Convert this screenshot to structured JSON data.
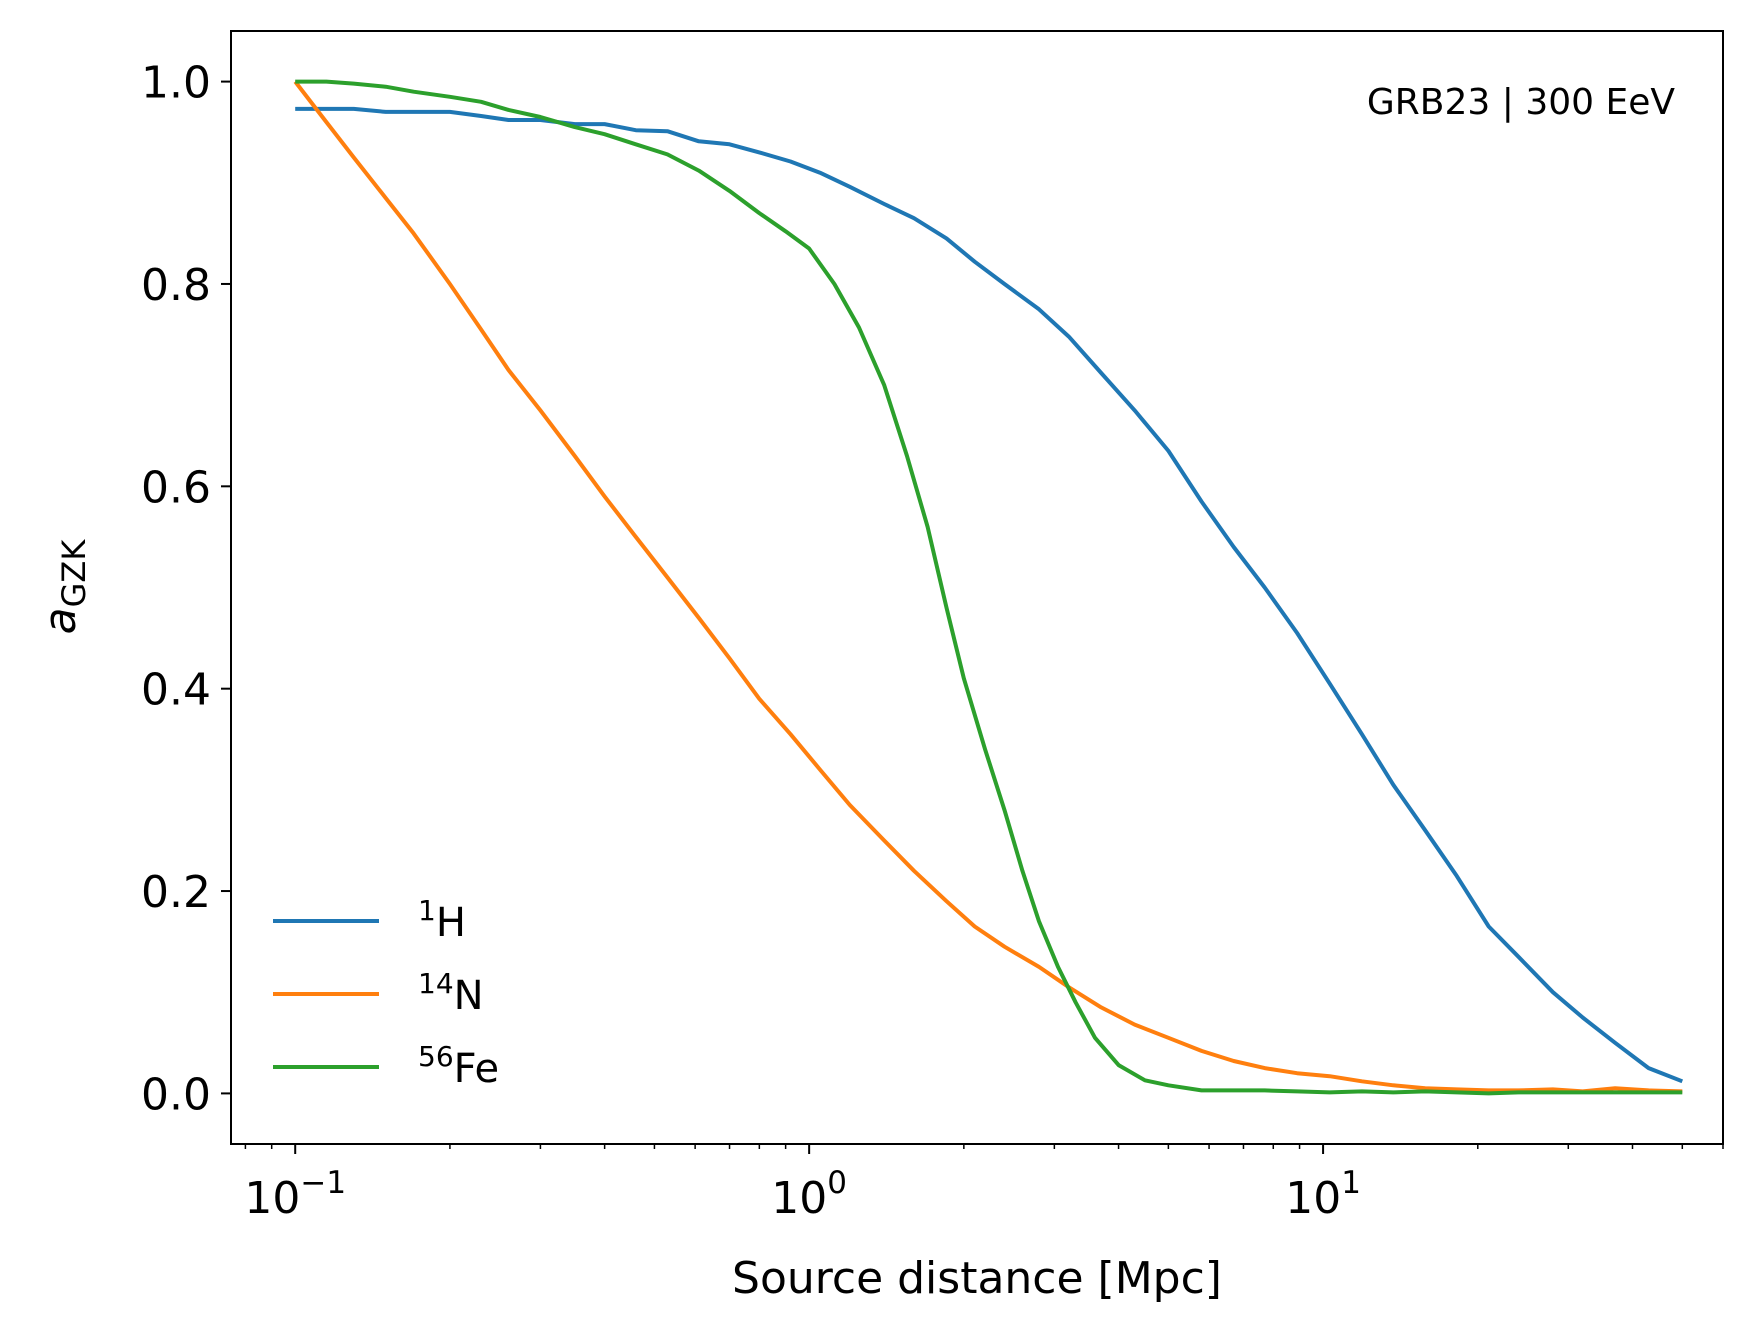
{
  "chart_data": {
    "type": "line",
    "annotation": "GRB23 | 300 EeV",
    "xlabel": "Source distance [Mpc]",
    "ylabel": {
      "base": "a",
      "sub": "GZK"
    },
    "xscale": "log",
    "xlim": [
      0.075,
      60
    ],
    "ylim": [
      -0.05,
      1.05
    ],
    "xticks": [
      {
        "value": 0.1,
        "base": "10",
        "exp": "−1"
      },
      {
        "value": 1,
        "base": "10",
        "exp": "0"
      },
      {
        "value": 10,
        "base": "10",
        "exp": "1"
      }
    ],
    "yticks": [
      "0.0",
      "0.2",
      "0.4",
      "0.6",
      "0.8",
      "1.0"
    ],
    "grid": false,
    "legend": "lower-left",
    "series": [
      {
        "name": "1H",
        "legend_sup": "1",
        "legend_base": "H",
        "color": "#1f77b4",
        "x": [
          0.1,
          0.115,
          0.13,
          0.15,
          0.17,
          0.2,
          0.23,
          0.26,
          0.3,
          0.35,
          0.4,
          0.46,
          0.53,
          0.61,
          0.7,
          0.8,
          0.92,
          1.05,
          1.2,
          1.4,
          1.6,
          1.85,
          2.1,
          2.4,
          2.8,
          3.2,
          3.7,
          4.3,
          5.0,
          5.8,
          6.7,
          7.7,
          8.9,
          10.3,
          11.9,
          13.7,
          15.8,
          18.2,
          21,
          24,
          28,
          32,
          37,
          43,
          50
        ],
        "y": [
          0.973,
          0.973,
          0.973,
          0.97,
          0.97,
          0.97,
          0.966,
          0.962,
          0.962,
          0.958,
          0.958,
          0.952,
          0.951,
          0.941,
          0.938,
          0.93,
          0.921,
          0.91,
          0.896,
          0.879,
          0.865,
          0.845,
          0.822,
          0.8,
          0.775,
          0.748,
          0.712,
          0.675,
          0.635,
          0.585,
          0.54,
          0.5,
          0.455,
          0.405,
          0.355,
          0.305,
          0.26,
          0.215,
          0.165,
          0.135,
          0.1,
          0.075,
          0.05,
          0.025,
          0.012
        ]
      },
      {
        "name": "14N",
        "legend_sup": "14",
        "legend_base": "N",
        "color": "#ff7f0e",
        "x": [
          0.1,
          0.115,
          0.13,
          0.15,
          0.17,
          0.2,
          0.23,
          0.26,
          0.3,
          0.35,
          0.4,
          0.46,
          0.53,
          0.61,
          0.7,
          0.8,
          0.92,
          1.05,
          1.2,
          1.4,
          1.6,
          1.85,
          2.1,
          2.4,
          2.8,
          3.2,
          3.7,
          4.3,
          5.0,
          5.8,
          6.7,
          7.7,
          8.9,
          10.3,
          11.9,
          13.7,
          15.8,
          18.2,
          21,
          24,
          28,
          32,
          37,
          43,
          50
        ],
        "y": [
          1.0,
          0.96,
          0.925,
          0.885,
          0.85,
          0.8,
          0.755,
          0.715,
          0.675,
          0.63,
          0.59,
          0.55,
          0.51,
          0.47,
          0.43,
          0.39,
          0.355,
          0.32,
          0.285,
          0.25,
          0.22,
          0.19,
          0.165,
          0.145,
          0.125,
          0.105,
          0.085,
          0.068,
          0.055,
          0.042,
          0.032,
          0.025,
          0.02,
          0.017,
          0.012,
          0.008,
          0.005,
          0.004,
          0.003,
          0.003,
          0.004,
          0.002,
          0.005,
          0.003,
          0.002
        ]
      },
      {
        "name": "56Fe",
        "legend_sup": "56",
        "legend_base": "Fe",
        "color": "#2ca02c",
        "x": [
          0.1,
          0.115,
          0.13,
          0.15,
          0.17,
          0.2,
          0.23,
          0.26,
          0.3,
          0.35,
          0.4,
          0.46,
          0.53,
          0.61,
          0.7,
          0.8,
          0.9,
          1.0,
          1.12,
          1.25,
          1.4,
          1.55,
          1.7,
          1.85,
          2.0,
          2.2,
          2.4,
          2.6,
          2.8,
          3.05,
          3.3,
          3.6,
          4.0,
          4.5,
          5.0,
          5.8,
          6.7,
          7.7,
          8.9,
          10.3,
          11.9,
          13.7,
          15.8,
          18.2,
          21,
          24,
          28,
          32,
          37,
          43,
          50
        ],
        "y": [
          1.0,
          1.0,
          0.998,
          0.995,
          0.99,
          0.985,
          0.98,
          0.972,
          0.965,
          0.955,
          0.948,
          0.938,
          0.928,
          0.912,
          0.892,
          0.87,
          0.852,
          0.835,
          0.8,
          0.757,
          0.7,
          0.63,
          0.56,
          0.48,
          0.41,
          0.34,
          0.28,
          0.22,
          0.17,
          0.125,
          0.09,
          0.055,
          0.028,
          0.013,
          0.008,
          0.003,
          0.003,
          0.003,
          0.002,
          0.001,
          0.002,
          0.001,
          0.002,
          0.001,
          0.0,
          0.001,
          0.001,
          0.001,
          0.001,
          0.001,
          0.001
        ]
      }
    ]
  }
}
